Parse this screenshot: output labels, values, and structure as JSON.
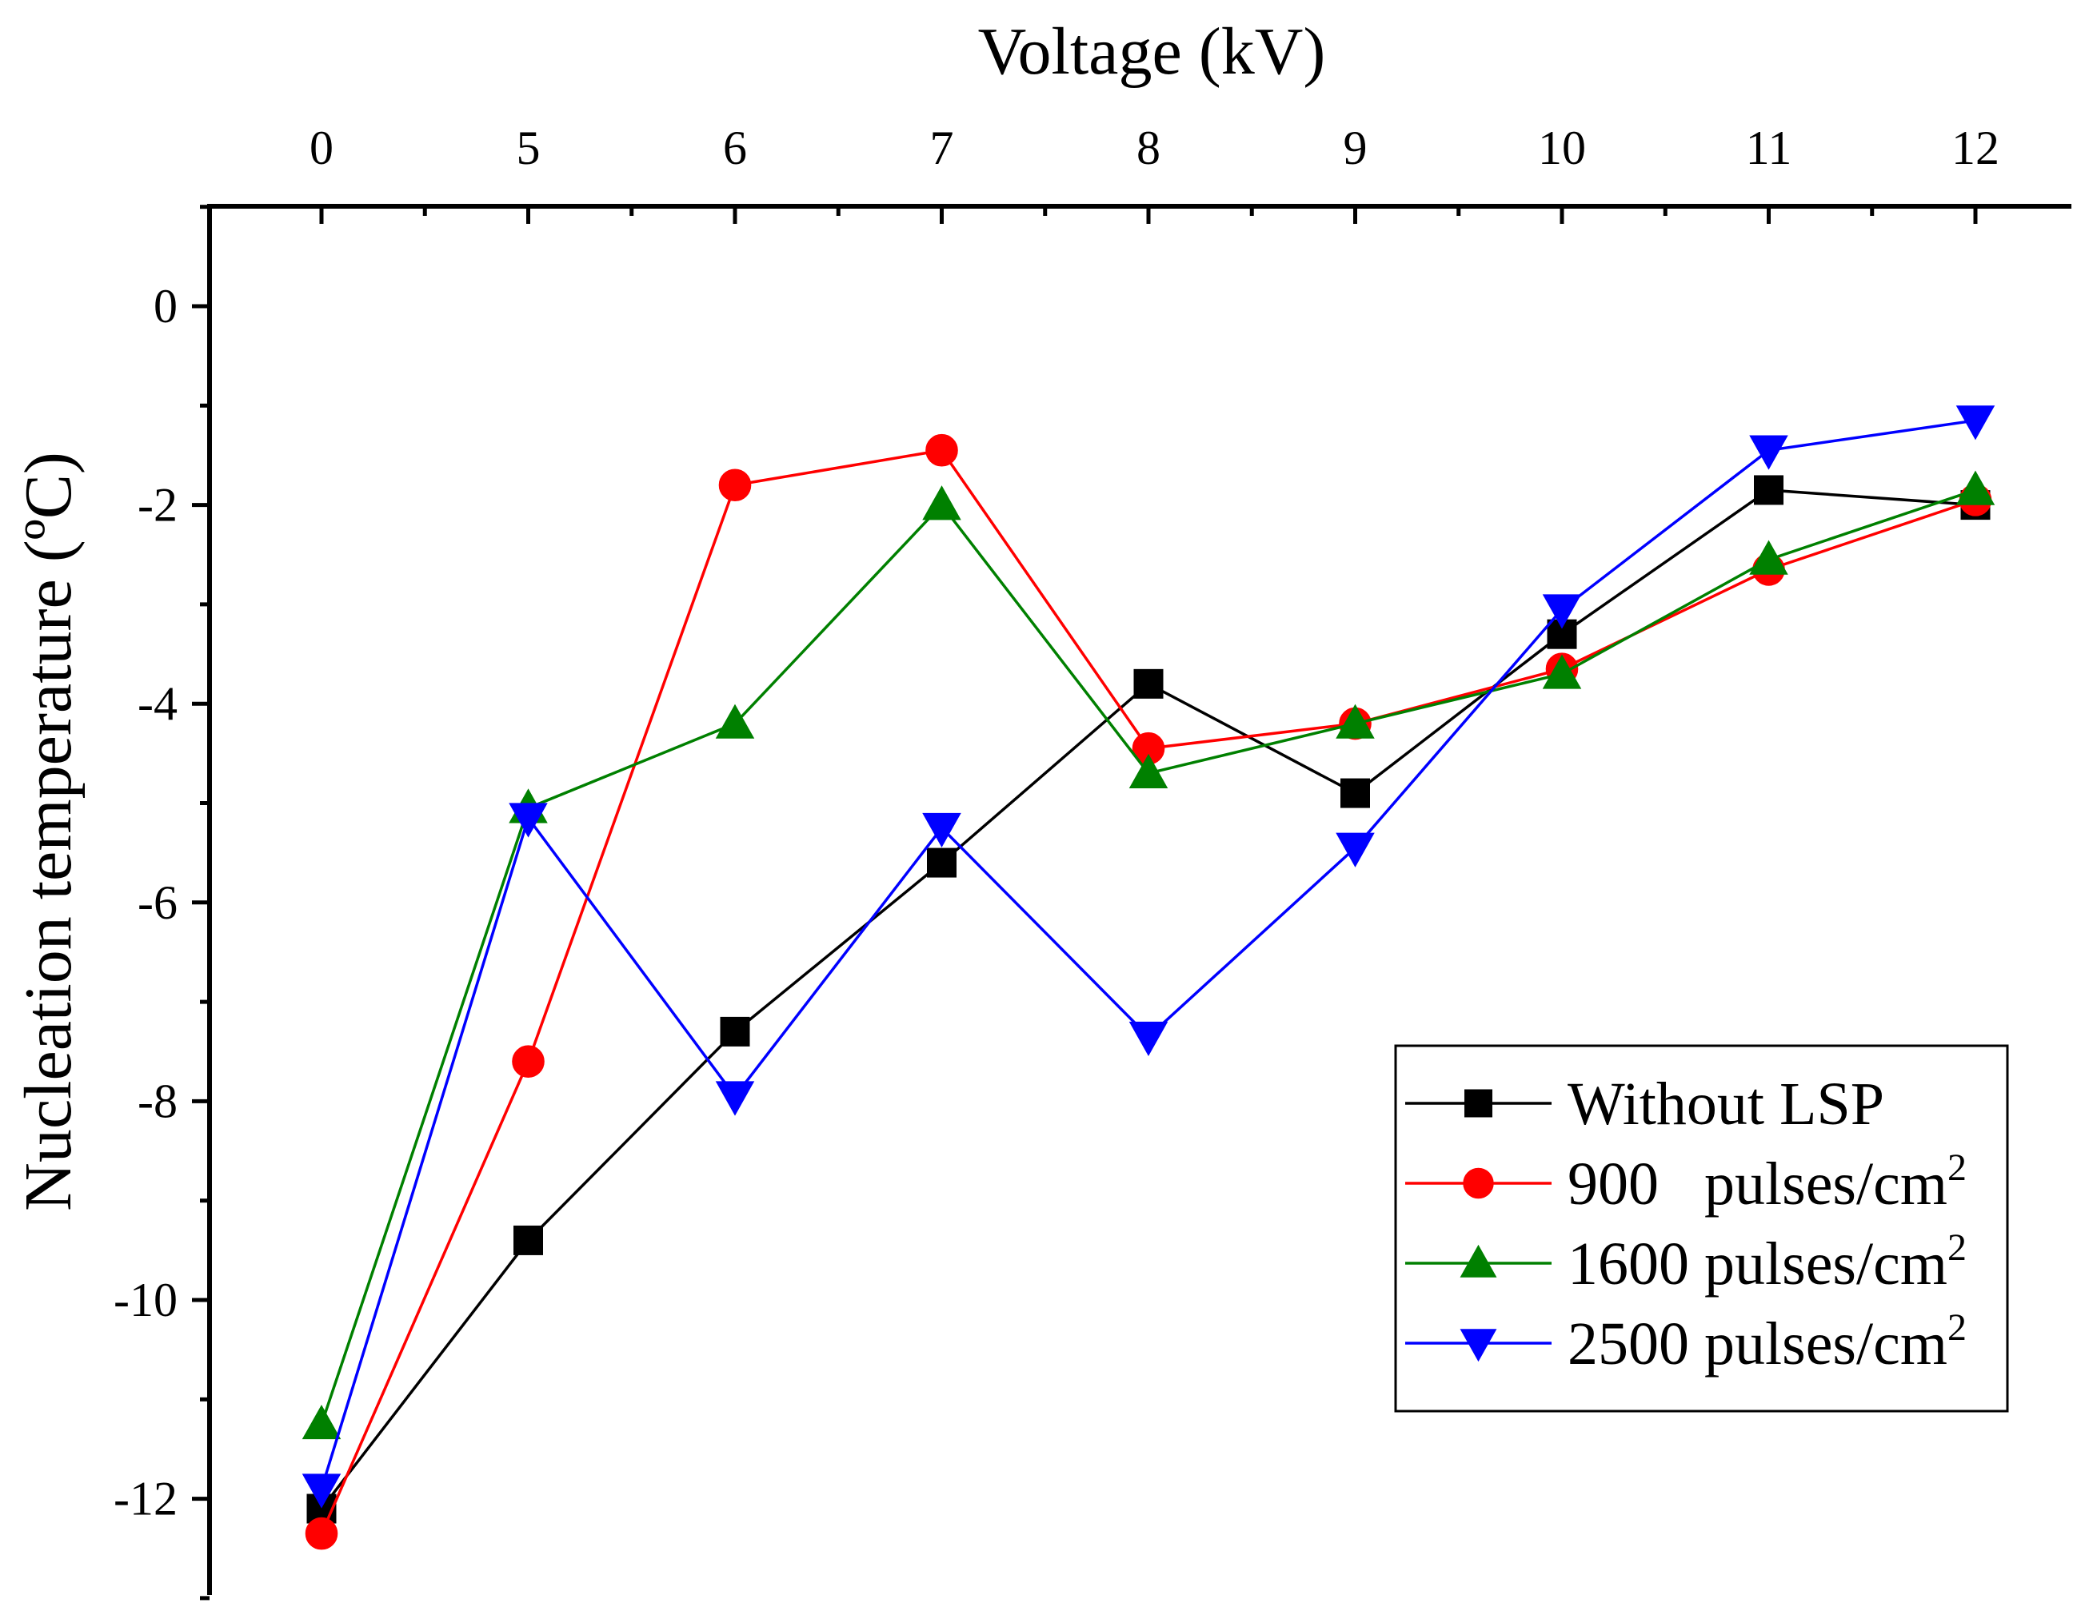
{
  "chart_data": {
    "type": "line",
    "title": "",
    "xlabel": "Voltage (kV)",
    "ylabel": "Nucleation temperature (ºC)",
    "x_axis_position": "top",
    "categories": [
      "0",
      "5",
      "6",
      "7",
      "8",
      "9",
      "10",
      "11",
      "12"
    ],
    "yticks": [
      "0",
      "-2",
      "-4",
      "-6",
      "-8",
      "-10",
      "-12"
    ],
    "ylim": [
      -13.0,
      1.0
    ],
    "grid": false,
    "legend_position": "bottom-right",
    "series": [
      {
        "name": "Without LSP",
        "marker": "square",
        "color": "#000000",
        "values": [
          -12.1,
          -9.4,
          -7.3,
          -5.6,
          -3.8,
          -4.9,
          -3.3,
          -1.85,
          -2.0
        ]
      },
      {
        "name": "900   pulses/cm",
        "superscript": "2",
        "marker": "circle",
        "color": "#ff0000",
        "values": [
          -12.35,
          -7.6,
          -1.8,
          -1.45,
          -4.45,
          -4.2,
          -3.65,
          -2.65,
          -1.95
        ]
      },
      {
        "name": "1600 pulses/cm",
        "superscript": "2",
        "marker": "triangle-up",
        "color": "#008000",
        "values": [
          -11.25,
          -5.05,
          -4.2,
          -2.0,
          -4.7,
          -4.2,
          -3.7,
          -2.55,
          -1.85
        ]
      },
      {
        "name": "2500 pulses/cm",
        "superscript": "2",
        "marker": "triangle-down",
        "color": "#0000ff",
        "values": [
          -11.9,
          -5.15,
          -7.95,
          -5.25,
          -7.35,
          -5.45,
          -3.05,
          -1.45,
          -1.15
        ]
      }
    ]
  }
}
